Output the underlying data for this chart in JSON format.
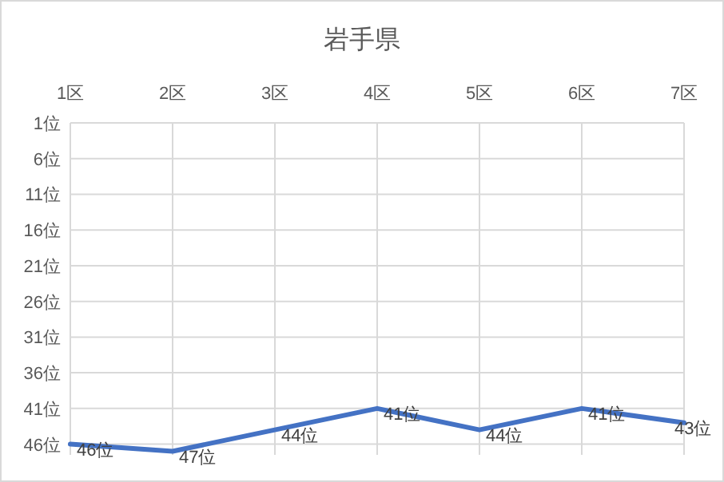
{
  "chart_data": {
    "type": "line",
    "title": "岩手県",
    "categories": [
      "1区",
      "2区",
      "3区",
      "4区",
      "5区",
      "6区",
      "7区"
    ],
    "series": [
      {
        "color": "#4472c4",
        "values": [
          46,
          47,
          44,
          41,
          44,
          41,
          43
        ],
        "value_labels": [
          "46位",
          "47位",
          "44位",
          "41位",
          "44位",
          "41位",
          "43位"
        ]
      }
    ],
    "ylim": [
      47.5,
      1
    ],
    "yticks": [
      {
        "value": 1,
        "label": "1位"
      },
      {
        "value": 6,
        "label": "6位"
      },
      {
        "value": 11,
        "label": "11位"
      },
      {
        "value": 16,
        "label": "16位"
      },
      {
        "value": 21,
        "label": "21位"
      },
      {
        "value": 26,
        "label": "26位"
      },
      {
        "value": 31,
        "label": "31位"
      },
      {
        "value": 36,
        "label": "36位"
      },
      {
        "value": 41,
        "label": "41位"
      },
      {
        "value": 46,
        "label": "46位"
      }
    ],
    "grid": true,
    "marker": "none",
    "line_style": "solid"
  }
}
